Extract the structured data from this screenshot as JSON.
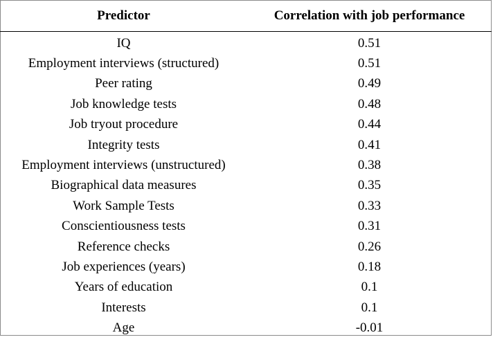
{
  "table": {
    "headers": {
      "predictor": "Predictor",
      "correlation": "Correlation with job performance"
    },
    "rows": [
      {
        "predictor": "IQ",
        "correlation": "0.51"
      },
      {
        "predictor": "Employment interviews (structured)",
        "correlation": "0.51"
      },
      {
        "predictor": "Peer rating",
        "correlation": "0.49"
      },
      {
        "predictor": "Job knowledge tests",
        "correlation": "0.48"
      },
      {
        "predictor": "Job tryout procedure",
        "correlation": "0.44"
      },
      {
        "predictor": "Integrity tests",
        "correlation": "0.41"
      },
      {
        "predictor": "Employment interviews (unstructured)",
        "correlation": "0.38"
      },
      {
        "predictor": "Biographical data measures",
        "correlation": "0.35"
      },
      {
        "predictor": "Work Sample Tests",
        "correlation": "0.33"
      },
      {
        "predictor": "Conscientiousness tests",
        "correlation": "0.31"
      },
      {
        "predictor": "Reference checks",
        "correlation": "0.26"
      },
      {
        "predictor": "Job experiences (years)",
        "correlation": "0.18"
      },
      {
        "predictor": "Years of education",
        "correlation": "0.1"
      },
      {
        "predictor": "Interests",
        "correlation": "0.1"
      },
      {
        "predictor": "Age",
        "correlation": "-0.01"
      }
    ]
  }
}
